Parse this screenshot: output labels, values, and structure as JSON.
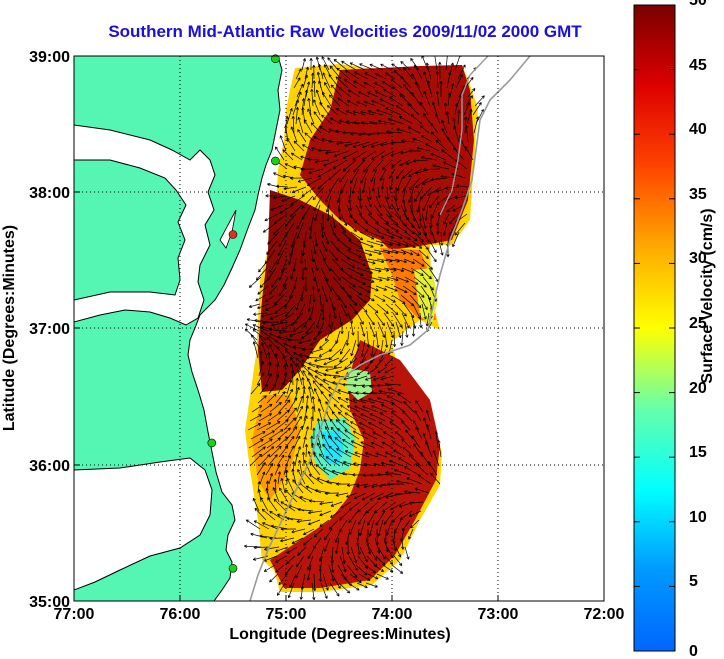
{
  "title": "Southern Mid-Atlantic Raw Velocities 2009/11/02 2000 GMT",
  "map": {
    "xlabel": "Longitude (Degrees:Minutes)",
    "ylabel": "Latitude (Degrees:Minutes)",
    "lon_ticks": [
      "77:00",
      "76:00",
      "75:00",
      "74:00",
      "73:00",
      "72:00"
    ],
    "lat_ticks": [
      "39:00",
      "38:00",
      "37:00",
      "36:00",
      "35:00"
    ],
    "lon_range": [
      -77,
      -72
    ],
    "lat_range": [
      35,
      39
    ],
    "grid": "dotted",
    "land_color": "#55f5b4",
    "station_markers": [
      {
        "lon": -75.1,
        "lat": 38.98,
        "color": "#19d219"
      },
      {
        "lon": -75.1,
        "lat": 38.23,
        "color": "#19d219"
      },
      {
        "lon": -75.5,
        "lat": 37.69,
        "color": "#e23020"
      },
      {
        "lon": -75.7,
        "lat": 36.16,
        "color": "#19d219"
      },
      {
        "lon": -75.5,
        "lat": 35.24,
        "color": "#19d219"
      }
    ]
  },
  "colorbar": {
    "label": "Surface Velocity (cm/s)",
    "ticks": [
      "0",
      "5",
      "10",
      "15",
      "20",
      "25",
      "30",
      "35",
      "40",
      "45",
      "50"
    ],
    "range": [
      0,
      50
    ],
    "colormap": "jet"
  }
}
